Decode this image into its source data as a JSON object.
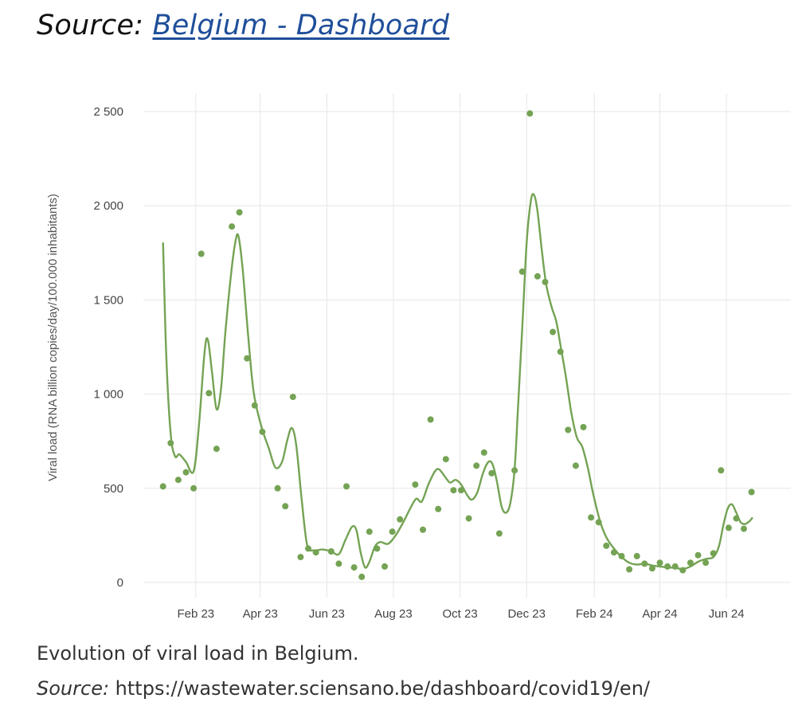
{
  "heading": {
    "prefix": "Source: ",
    "link_text": "Belgium - Dashboard"
  },
  "caption": "Evolution of viral load in Belgium.",
  "source": {
    "label": "Source:",
    "url": " https://wastewater.sciensano.be/dashboard/covid19/en/"
  },
  "colors": {
    "series": "#74a354",
    "grid": "#e6e6e6",
    "link": "#1f4e9a"
  },
  "chart_data": {
    "type": "scatter",
    "ylabel": "Viral load (RNA billion copies/day/100.000 inhabitants)",
    "ylim": [
      0,
      2600
    ],
    "xlim": [
      "2022-12-15",
      "2024-07-30"
    ],
    "y_ticks": [
      {
        "value": 0,
        "label": "0"
      },
      {
        "value": 500,
        "label": "500"
      },
      {
        "value": 1000,
        "label": "1 000"
      },
      {
        "value": 1500,
        "label": "1 500"
      },
      {
        "value": 2000,
        "label": "2 000"
      },
      {
        "value": 2500,
        "label": "2 500"
      }
    ],
    "x_ticks": [
      {
        "date": "2023-02-01",
        "label": "Feb 23"
      },
      {
        "date": "2023-04-01",
        "label": "Apr 23"
      },
      {
        "date": "2023-06-01",
        "label": "Jun 23"
      },
      {
        "date": "2023-08-01",
        "label": "Aug 23"
      },
      {
        "date": "2023-10-01",
        "label": "Oct 23"
      },
      {
        "date": "2023-12-01",
        "label": "Dec 23"
      },
      {
        "date": "2024-02-01",
        "label": "Feb 24"
      },
      {
        "date": "2024-04-01",
        "label": "Apr 24"
      },
      {
        "date": "2024-06-01",
        "label": "Jun 24"
      }
    ],
    "grid": true,
    "legend": "none",
    "points": [
      {
        "x": "2023-01-02",
        "y": 510
      },
      {
        "x": "2023-01-09",
        "y": 740
      },
      {
        "x": "2023-01-16",
        "y": 545
      },
      {
        "x": "2023-01-23",
        "y": 585
      },
      {
        "x": "2023-01-30",
        "y": 500
      },
      {
        "x": "2023-02-06",
        "y": 1745
      },
      {
        "x": "2023-02-13",
        "y": 1005
      },
      {
        "x": "2023-02-20",
        "y": 710
      },
      {
        "x": "2023-03-06",
        "y": 1890
      },
      {
        "x": "2023-03-13",
        "y": 1965
      },
      {
        "x": "2023-03-20",
        "y": 1190
      },
      {
        "x": "2023-03-27",
        "y": 940
      },
      {
        "x": "2023-04-03",
        "y": 800
      },
      {
        "x": "2023-04-17",
        "y": 500
      },
      {
        "x": "2023-04-24",
        "y": 405
      },
      {
        "x": "2023-05-01",
        "y": 985
      },
      {
        "x": "2023-05-08",
        "y": 135
      },
      {
        "x": "2023-05-15",
        "y": 180
      },
      {
        "x": "2023-05-22",
        "y": 160
      },
      {
        "x": "2023-06-05",
        "y": 165
      },
      {
        "x": "2023-06-12",
        "y": 100
      },
      {
        "x": "2023-06-19",
        "y": 510
      },
      {
        "x": "2023-06-26",
        "y": 80
      },
      {
        "x": "2023-07-03",
        "y": 30
      },
      {
        "x": "2023-07-10",
        "y": 270
      },
      {
        "x": "2023-07-17",
        "y": 180
      },
      {
        "x": "2023-07-24",
        "y": 85
      },
      {
        "x": "2023-07-31",
        "y": 270
      },
      {
        "x": "2023-08-07",
        "y": 335
      },
      {
        "x": "2023-08-21",
        "y": 520
      },
      {
        "x": "2023-08-28",
        "y": 280
      },
      {
        "x": "2023-09-04",
        "y": 865
      },
      {
        "x": "2023-09-11",
        "y": 390
      },
      {
        "x": "2023-09-18",
        "y": 655
      },
      {
        "x": "2023-09-25",
        "y": 490
      },
      {
        "x": "2023-10-02",
        "y": 490
      },
      {
        "x": "2023-10-09",
        "y": 340
      },
      {
        "x": "2023-10-16",
        "y": 620
      },
      {
        "x": "2023-10-23",
        "y": 690
      },
      {
        "x": "2023-10-30",
        "y": 580
      },
      {
        "x": "2023-11-06",
        "y": 260
      },
      {
        "x": "2023-11-20",
        "y": 595
      },
      {
        "x": "2023-11-27",
        "y": 1650
      },
      {
        "x": "2023-12-04",
        "y": 2490
      },
      {
        "x": "2023-12-11",
        "y": 1625
      },
      {
        "x": "2023-12-18",
        "y": 1595
      },
      {
        "x": "2023-12-25",
        "y": 1330
      },
      {
        "x": "2024-01-01",
        "y": 1225
      },
      {
        "x": "2024-01-08",
        "y": 810
      },
      {
        "x": "2024-01-15",
        "y": 620
      },
      {
        "x": "2024-01-22",
        "y": 825
      },
      {
        "x": "2024-01-29",
        "y": 345
      },
      {
        "x": "2024-02-05",
        "y": 320
      },
      {
        "x": "2024-02-12",
        "y": 195
      },
      {
        "x": "2024-02-19",
        "y": 160
      },
      {
        "x": "2024-02-26",
        "y": 140
      },
      {
        "x": "2024-03-04",
        "y": 70
      },
      {
        "x": "2024-03-11",
        "y": 140
      },
      {
        "x": "2024-03-18",
        "y": 100
      },
      {
        "x": "2024-03-25",
        "y": 75
      },
      {
        "x": "2024-04-01",
        "y": 105
      },
      {
        "x": "2024-04-08",
        "y": 85
      },
      {
        "x": "2024-04-15",
        "y": 85
      },
      {
        "x": "2024-04-22",
        "y": 65
      },
      {
        "x": "2024-04-29",
        "y": 105
      },
      {
        "x": "2024-05-06",
        "y": 145
      },
      {
        "x": "2024-05-13",
        "y": 105
      },
      {
        "x": "2024-05-20",
        "y": 155
      },
      {
        "x": "2024-05-27",
        "y": 595
      },
      {
        "x": "2024-06-03",
        "y": 290
      },
      {
        "x": "2024-06-10",
        "y": 340
      },
      {
        "x": "2024-06-17",
        "y": 285
      },
      {
        "x": "2024-06-24",
        "y": 480
      }
    ],
    "trend": [
      {
        "x": "2023-01-02",
        "y": 1805
      },
      {
        "x": "2023-01-05",
        "y": 1200
      },
      {
        "x": "2023-01-09",
        "y": 790
      },
      {
        "x": "2023-01-13",
        "y": 670
      },
      {
        "x": "2023-01-17",
        "y": 680
      },
      {
        "x": "2023-01-23",
        "y": 640
      },
      {
        "x": "2023-01-30",
        "y": 590
      },
      {
        "x": "2023-02-04",
        "y": 840
      },
      {
        "x": "2023-02-09",
        "y": 1220
      },
      {
        "x": "2023-02-12",
        "y": 1290
      },
      {
        "x": "2023-02-16",
        "y": 1110
      },
      {
        "x": "2023-02-20",
        "y": 920
      },
      {
        "x": "2023-02-24",
        "y": 1020
      },
      {
        "x": "2023-02-28",
        "y": 1320
      },
      {
        "x": "2023-03-05",
        "y": 1620
      },
      {
        "x": "2023-03-09",
        "y": 1800
      },
      {
        "x": "2023-03-12",
        "y": 1840
      },
      {
        "x": "2023-03-16",
        "y": 1660
      },
      {
        "x": "2023-03-21",
        "y": 1310
      },
      {
        "x": "2023-03-26",
        "y": 1010
      },
      {
        "x": "2023-04-02",
        "y": 830
      },
      {
        "x": "2023-04-09",
        "y": 710
      },
      {
        "x": "2023-04-15",
        "y": 610
      },
      {
        "x": "2023-04-21",
        "y": 640
      },
      {
        "x": "2023-04-26",
        "y": 760
      },
      {
        "x": "2023-04-30",
        "y": 820
      },
      {
        "x": "2023-05-04",
        "y": 730
      },
      {
        "x": "2023-05-09",
        "y": 440
      },
      {
        "x": "2023-05-14",
        "y": 200
      },
      {
        "x": "2023-05-20",
        "y": 170
      },
      {
        "x": "2023-05-28",
        "y": 175
      },
      {
        "x": "2023-06-05",
        "y": 165
      },
      {
        "x": "2023-06-12",
        "y": 150
      },
      {
        "x": "2023-06-18",
        "y": 225
      },
      {
        "x": "2023-06-24",
        "y": 295
      },
      {
        "x": "2023-06-28",
        "y": 280
      },
      {
        "x": "2023-07-02",
        "y": 160
      },
      {
        "x": "2023-07-06",
        "y": 80
      },
      {
        "x": "2023-07-10",
        "y": 110
      },
      {
        "x": "2023-07-15",
        "y": 190
      },
      {
        "x": "2023-07-20",
        "y": 215
      },
      {
        "x": "2023-07-27",
        "y": 205
      },
      {
        "x": "2023-08-03",
        "y": 250
      },
      {
        "x": "2023-08-10",
        "y": 320
      },
      {
        "x": "2023-08-17",
        "y": 400
      },
      {
        "x": "2023-08-22",
        "y": 445
      },
      {
        "x": "2023-08-27",
        "y": 430
      },
      {
        "x": "2023-09-02",
        "y": 520
      },
      {
        "x": "2023-09-08",
        "y": 590
      },
      {
        "x": "2023-09-12",
        "y": 600
      },
      {
        "x": "2023-09-18",
        "y": 555
      },
      {
        "x": "2023-09-22",
        "y": 530
      },
      {
        "x": "2023-09-27",
        "y": 545
      },
      {
        "x": "2023-10-02",
        "y": 520
      },
      {
        "x": "2023-10-08",
        "y": 460
      },
      {
        "x": "2023-10-12",
        "y": 440
      },
      {
        "x": "2023-10-17",
        "y": 480
      },
      {
        "x": "2023-10-22",
        "y": 580
      },
      {
        "x": "2023-10-27",
        "y": 640
      },
      {
        "x": "2023-10-31",
        "y": 625
      },
      {
        "x": "2023-11-04",
        "y": 530
      },
      {
        "x": "2023-11-08",
        "y": 405
      },
      {
        "x": "2023-11-12",
        "y": 370
      },
      {
        "x": "2023-11-16",
        "y": 420
      },
      {
        "x": "2023-11-20",
        "y": 600
      },
      {
        "x": "2023-11-23",
        "y": 920
      },
      {
        "x": "2023-11-27",
        "y": 1350
      },
      {
        "x": "2023-12-01",
        "y": 1800
      },
      {
        "x": "2023-12-05",
        "y": 2030
      },
      {
        "x": "2023-12-08",
        "y": 2055
      },
      {
        "x": "2023-12-11",
        "y": 1970
      },
      {
        "x": "2023-12-15",
        "y": 1760
      },
      {
        "x": "2023-12-19",
        "y": 1580
      },
      {
        "x": "2023-12-24",
        "y": 1460
      },
      {
        "x": "2023-12-28",
        "y": 1390
      },
      {
        "x": "2024-01-01",
        "y": 1260
      },
      {
        "x": "2024-01-06",
        "y": 1090
      },
      {
        "x": "2024-01-11",
        "y": 900
      },
      {
        "x": "2024-01-16",
        "y": 770
      },
      {
        "x": "2024-01-21",
        "y": 720
      },
      {
        "x": "2024-01-26",
        "y": 610
      },
      {
        "x": "2024-01-31",
        "y": 470
      },
      {
        "x": "2024-02-06",
        "y": 330
      },
      {
        "x": "2024-02-12",
        "y": 240
      },
      {
        "x": "2024-02-19",
        "y": 180
      },
      {
        "x": "2024-02-26",
        "y": 135
      },
      {
        "x": "2024-03-04",
        "y": 105
      },
      {
        "x": "2024-03-11",
        "y": 95
      },
      {
        "x": "2024-03-18",
        "y": 100
      },
      {
        "x": "2024-03-25",
        "y": 90
      },
      {
        "x": "2024-04-01",
        "y": 85
      },
      {
        "x": "2024-04-08",
        "y": 80
      },
      {
        "x": "2024-04-15",
        "y": 78
      },
      {
        "x": "2024-04-22",
        "y": 72
      },
      {
        "x": "2024-04-29",
        "y": 85
      },
      {
        "x": "2024-05-06",
        "y": 110
      },
      {
        "x": "2024-05-13",
        "y": 125
      },
      {
        "x": "2024-05-20",
        "y": 135
      },
      {
        "x": "2024-05-25",
        "y": 190
      },
      {
        "x": "2024-05-29",
        "y": 300
      },
      {
        "x": "2024-06-02",
        "y": 390
      },
      {
        "x": "2024-06-06",
        "y": 415
      },
      {
        "x": "2024-06-10",
        "y": 370
      },
      {
        "x": "2024-06-14",
        "y": 320
      },
      {
        "x": "2024-06-18",
        "y": 310
      },
      {
        "x": "2024-06-22",
        "y": 325
      },
      {
        "x": "2024-06-25",
        "y": 345
      }
    ]
  }
}
